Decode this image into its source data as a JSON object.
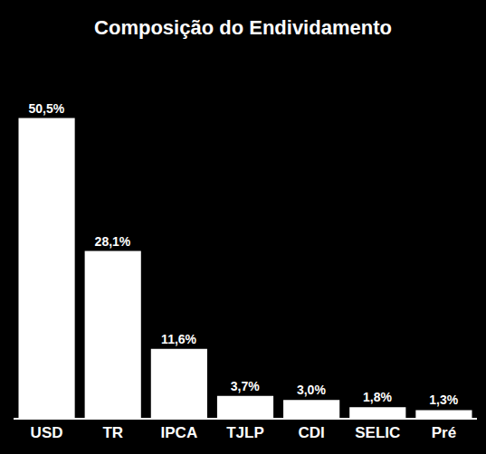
{
  "chart_data": {
    "type": "bar",
    "title": "Composição do Endividamento",
    "categories": [
      "USD",
      "TR",
      "IPCA",
      "TJLP",
      "CDI",
      "SELIC",
      "Pré"
    ],
    "values": [
      50.5,
      28.1,
      11.6,
      3.7,
      3.0,
      1.8,
      1.3
    ],
    "value_labels": [
      "50,5%",
      "28,1%",
      "11,6%",
      "3,7%",
      "3,0%",
      "1,8%",
      "1,3%"
    ],
    "color": "#ffffff",
    "ylim": [
      0,
      55
    ],
    "data_labels": true,
    "tick_labels": "x",
    "grid": false
  }
}
